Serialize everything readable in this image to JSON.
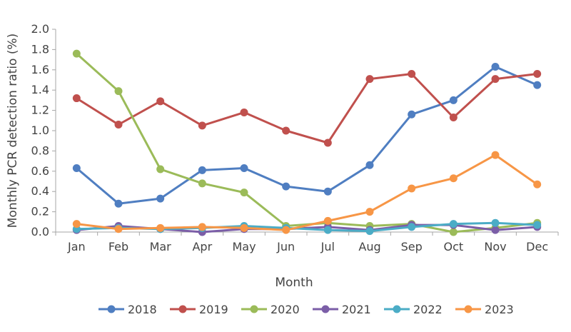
{
  "chart_data": {
    "type": "line",
    "xlabel": "Month",
    "ylabel": "Monthly PCR detection ratio (%)",
    "categories": [
      "Jan",
      "Feb",
      "Mar",
      "Apr",
      "May",
      "Jun",
      "Jul",
      "Aug",
      "Sep",
      "Oct",
      "Nov",
      "Dec"
    ],
    "ylim": [
      0,
      2.0
    ],
    "yticks": [
      "0.0",
      "0.2",
      "0.4",
      "0.6",
      "0.8",
      "1.0",
      "1.2",
      "1.4",
      "1.6",
      "1.8",
      "2.0"
    ],
    "grid": false,
    "legend_position": "bottom",
    "series": [
      {
        "name": "2018",
        "color": "#4f7ec1",
        "values": [
          0.63,
          0.28,
          0.33,
          0.61,
          0.63,
          0.45,
          0.4,
          0.66,
          1.16,
          1.3,
          1.63,
          1.45
        ]
      },
      {
        "name": "2019",
        "color": "#c0504d",
        "values": [
          1.32,
          1.06,
          1.29,
          1.05,
          1.18,
          1.0,
          0.88,
          1.51,
          1.56,
          1.13,
          1.51,
          1.56
        ]
      },
      {
        "name": "2020",
        "color": "#9bbb59",
        "values": [
          1.76,
          1.39,
          0.62,
          0.48,
          0.39,
          0.06,
          0.09,
          0.06,
          0.08,
          0.0,
          0.04,
          0.09
        ]
      },
      {
        "name": "2021",
        "color": "#7b5ea7",
        "values": [
          0.02,
          0.06,
          0.03,
          0.0,
          0.03,
          0.03,
          0.05,
          0.02,
          0.07,
          0.07,
          0.02,
          0.05
        ]
      },
      {
        "name": "2022",
        "color": "#4bacc6",
        "values": [
          0.03,
          0.04,
          0.03,
          0.04,
          0.06,
          0.04,
          0.02,
          0.01,
          0.05,
          0.08,
          0.09,
          0.07
        ]
      },
      {
        "name": "2023",
        "color": "#f79646",
        "values": [
          0.08,
          0.03,
          0.04,
          0.05,
          0.04,
          0.02,
          0.11,
          0.2,
          0.43,
          0.53,
          0.76,
          0.47
        ]
      }
    ]
  }
}
